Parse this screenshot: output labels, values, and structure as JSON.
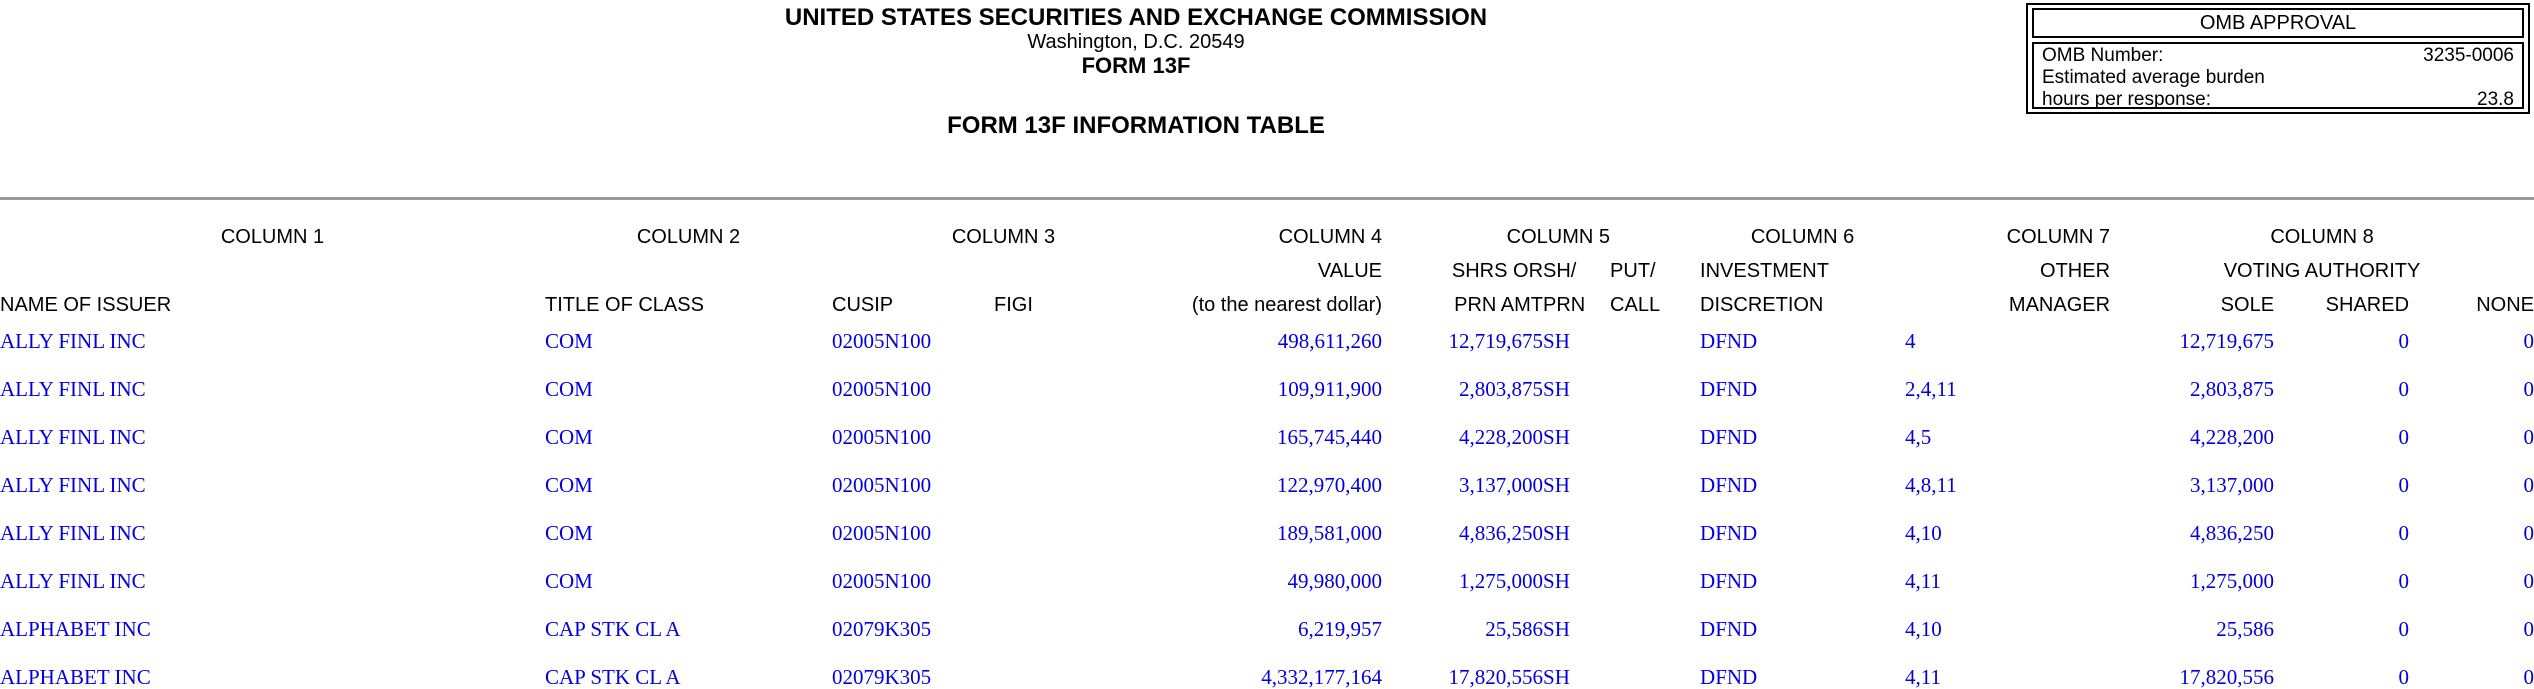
{
  "header": {
    "agency": "UNITED STATES SECURITIES AND EXCHANGE COMMISSION",
    "location": "Washington, D.C. 20549",
    "form_name": "FORM 13F",
    "table_title": "FORM 13F INFORMATION TABLE"
  },
  "omb": {
    "title": "OMB APPROVAL",
    "number_label": "OMB Number:",
    "number_value": "3235-0006",
    "burden_label_line1": "Estimated average burden",
    "burden_label_line2": "hours per response:",
    "burden_value": "23.8"
  },
  "table": {
    "group_headers": {
      "c1": "COLUMN 1",
      "c2": "COLUMN 2",
      "c3": "COLUMN 3",
      "c4": "COLUMN 4",
      "c5": "COLUMN 5",
      "c6": "COLUMN 6",
      "c7": "COLUMN 7",
      "c8": "COLUMN 8"
    },
    "sub_headers": {
      "value": "VALUE",
      "shrs_or": "SHRS OR",
      "sh": "SH/",
      "put": "PUT/",
      "investment": "INVESTMENT",
      "other": "OTHER",
      "voting_authority": "VOTING AUTHORITY"
    },
    "col_headers": {
      "name_of_issuer": "NAME OF ISSUER",
      "title_of_class": "TITLE OF CLASS",
      "cusip": "CUSIP",
      "figi": "FIGI",
      "to_nearest_dollar": "(to the nearest dollar)",
      "prn_amt": "PRN AMT",
      "prn": "PRN",
      "call": "CALL",
      "discretion": "DISCRETION",
      "manager": "MANAGER",
      "sole": "SOLE",
      "shared": "SHARED",
      "none": "NONE"
    },
    "column_keys": [
      "name_of_issuer",
      "title_of_class",
      "cusip",
      "figi",
      "value",
      "shrs_or_prn_amt",
      "sh_prn",
      "put_call",
      "investment_discretion",
      "other_manager",
      "sole",
      "shared",
      "none"
    ],
    "rows": [
      [
        "ALLY FINL INC",
        "COM",
        "02005N100",
        "",
        "498,611,260",
        "12,719,675",
        "SH",
        "",
        "DFND",
        "4",
        "12,719,675",
        "0",
        "0"
      ],
      [
        "ALLY FINL INC",
        "COM",
        "02005N100",
        "",
        "109,911,900",
        "2,803,875",
        "SH",
        "",
        "DFND",
        "2,4,11",
        "2,803,875",
        "0",
        "0"
      ],
      [
        "ALLY FINL INC",
        "COM",
        "02005N100",
        "",
        "165,745,440",
        "4,228,200",
        "SH",
        "",
        "DFND",
        "4,5",
        "4,228,200",
        "0",
        "0"
      ],
      [
        "ALLY FINL INC",
        "COM",
        "02005N100",
        "",
        "122,970,400",
        "3,137,000",
        "SH",
        "",
        "DFND",
        "4,8,11",
        "3,137,000",
        "0",
        "0"
      ],
      [
        "ALLY FINL INC",
        "COM",
        "02005N100",
        "",
        "189,581,000",
        "4,836,250",
        "SH",
        "",
        "DFND",
        "4,10",
        "4,836,250",
        "0",
        "0"
      ],
      [
        "ALLY FINL INC",
        "COM",
        "02005N100",
        "",
        "49,980,000",
        "1,275,000",
        "SH",
        "",
        "DFND",
        "4,11",
        "1,275,000",
        "0",
        "0"
      ],
      [
        "ALPHABET INC",
        "CAP STK CL A",
        "02079K305",
        "",
        "6,219,957",
        "25,586",
        "SH",
        "",
        "DFND",
        "4,10",
        "25,586",
        "0",
        "0"
      ],
      [
        "ALPHABET INC",
        "CAP STK CL A",
        "02079K305",
        "",
        "4,332,177,164",
        "17,820,556",
        "SH",
        "",
        "DFND",
        "4,11",
        "17,820,556",
        "0",
        "0"
      ]
    ]
  },
  "colors": {
    "data_blue": "#0000dd",
    "divider_gray": "#9a9a9a"
  }
}
